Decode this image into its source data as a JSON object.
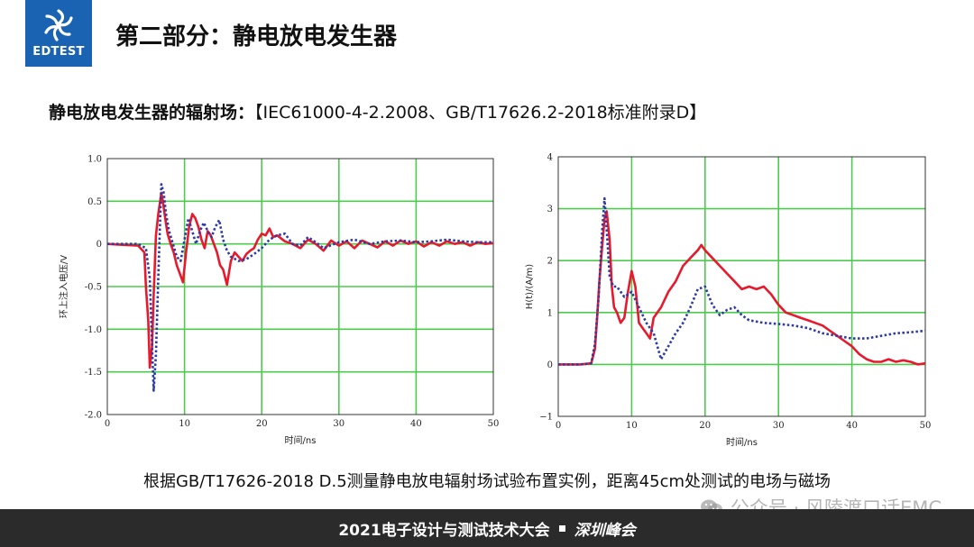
{
  "header": {
    "logo_text": "EDTEST",
    "title": "第二部分：静电放电发生器"
  },
  "subtitle": {
    "main": "静电放电发生器的辐射场：",
    "standard": "【IEC61000-4-2.2008、GB/T17626.2-2018标准附录D】"
  },
  "chart_data": [
    {
      "type": "line",
      "title": "",
      "xlabel": "时间/ns",
      "ylabel": "环上注入电压/V",
      "xlim": [
        0,
        50
      ],
      "ylim": [
        -2.0,
        1.0
      ],
      "xticks": [
        "0",
        "10",
        "20",
        "30",
        "40",
        "50"
      ],
      "yticks": [
        "1.0",
        "0.5",
        "0",
        "-0.5",
        "-1.0",
        "-1.5",
        "-2.0"
      ],
      "grid": true,
      "colors": [
        "#e8192c",
        "#2c3aa8"
      ],
      "series": [
        {
          "x": [
            0,
            4,
            4.8,
            5,
            5.3,
            5.5,
            5.8,
            6,
            6.3,
            6.6,
            7,
            7.2,
            7.5,
            7.8,
            8.2,
            8.6,
            9,
            9.4,
            9.8,
            10.2,
            10.6,
            11,
            11.4,
            11.8,
            12.2,
            12.6,
            13,
            13.4,
            13.8,
            14.2,
            14.6,
            15,
            15.5,
            16,
            16.5,
            17,
            17.5,
            18,
            18.5,
            19,
            19.5,
            20,
            20.5,
            21,
            21.5,
            22,
            23,
            24,
            25,
            26,
            27,
            28,
            29,
            30,
            31,
            32,
            33,
            34,
            35,
            36,
            37,
            38,
            39,
            40,
            41,
            42,
            43,
            44,
            45,
            46,
            47,
            48,
            49,
            50
          ],
          "y": [
            0,
            -0.02,
            -0.1,
            -0.5,
            -0.9,
            -1.45,
            -1.2,
            -0.6,
            0.1,
            0.35,
            0.6,
            0.5,
            0.3,
            0.12,
            0,
            -0.1,
            -0.25,
            -0.35,
            -0.45,
            -0.1,
            0.2,
            0.35,
            0.3,
            0.2,
            0.05,
            -0.05,
            0.15,
            0.1,
            0.0,
            -0.1,
            -0.25,
            -0.3,
            -0.48,
            -0.2,
            -0.1,
            -0.15,
            -0.2,
            -0.12,
            -0.08,
            -0.05,
            0.05,
            0.12,
            0.1,
            0.18,
            0.08,
            0.1,
            0.03,
            0.0,
            -0.05,
            0.05,
            0.0,
            -0.08,
            0.04,
            -0.02,
            0.03,
            -0.05,
            0.04,
            0.0,
            -0.04,
            0.03,
            -0.02,
            0.04,
            0.0,
            0.03,
            -0.03,
            0.02,
            -0.02,
            0.03,
            0.0,
            0.02,
            -0.02,
            0.02,
            0.0,
            0.01
          ]
        },
        {
          "x": [
            0,
            4,
            5,
            5.5,
            5.8,
            6,
            6.3,
            6.6,
            7,
            7.3,
            7.6,
            8,
            8.5,
            9,
            9.5,
            10,
            10.5,
            11,
            11.5,
            12,
            12.5,
            13,
            13.5,
            14,
            14.5,
            15,
            15.5,
            16,
            17,
            18,
            19,
            20,
            21,
            22,
            23,
            24,
            25,
            26,
            27,
            28,
            30,
            32,
            34,
            36,
            38,
            40,
            42,
            44,
            46,
            48,
            50
          ],
          "y": [
            0,
            0,
            -0.05,
            -0.4,
            -1.2,
            -1.72,
            -1.3,
            -0.4,
            0.7,
            0.6,
            0.35,
            0.15,
            0.0,
            -0.15,
            -0.2,
            0.05,
            0.3,
            0.15,
            0.0,
            0.15,
            0.25,
            0.15,
            0.08,
            0.2,
            0.28,
            0.05,
            -0.08,
            -0.15,
            -0.2,
            -0.18,
            -0.12,
            -0.05,
            0.05,
            0.1,
            0.12,
            0.0,
            -0.02,
            0.08,
            0.02,
            -0.05,
            0.02,
            0.05,
            0.0,
            0.03,
            0.04,
            0.02,
            0.03,
            0.05,
            0.03,
            0.02,
            0.02
          ]
        }
      ]
    },
    {
      "type": "line",
      "title": "",
      "xlabel": "时间/ns",
      "ylabel": "H(t)/(A/m)",
      "xlim": [
        0,
        50
      ],
      "ylim": [
        -1,
        4
      ],
      "xticks": [
        "0",
        "10",
        "20",
        "30",
        "40",
        "50"
      ],
      "yticks": [
        "4",
        "3",
        "2",
        "1",
        "0",
        "−1"
      ],
      "grid": true,
      "colors": [
        "#e8192c",
        "#2c3aa8"
      ],
      "series": [
        {
          "x": [
            0,
            3,
            4.5,
            5,
            5.3,
            5.6,
            6,
            6.3,
            6.6,
            7,
            7.3,
            7.6,
            8,
            8.5,
            9,
            9.5,
            10,
            10.5,
            11,
            11.5,
            12,
            12.5,
            13,
            13.5,
            14,
            15,
            16,
            17,
            18,
            19,
            19.5,
            20,
            21,
            22,
            23,
            24,
            25,
            26,
            27,
            28,
            29,
            30,
            31,
            32,
            33,
            34,
            35,
            36,
            37,
            38,
            39,
            40,
            41,
            42,
            43,
            44,
            45,
            46,
            47,
            48,
            49,
            50
          ],
          "y": [
            0,
            0,
            0.02,
            0.3,
            0.9,
            1.6,
            2.3,
            2.8,
            2.95,
            2.4,
            1.5,
            1.1,
            1.0,
            0.8,
            0.9,
            1.4,
            1.8,
            1.5,
            0.8,
            0.7,
            0.6,
            0.5,
            0.9,
            1.0,
            1.1,
            1.4,
            1.6,
            1.9,
            2.05,
            2.2,
            2.3,
            2.2,
            2.05,
            1.9,
            1.75,
            1.6,
            1.45,
            1.5,
            1.45,
            1.5,
            1.35,
            1.15,
            1.0,
            0.95,
            0.9,
            0.85,
            0.8,
            0.75,
            0.65,
            0.55,
            0.45,
            0.35,
            0.2,
            0.1,
            0.05,
            0.05,
            0.1,
            0.05,
            0.08,
            0.05,
            0.0,
            0.02
          ]
        },
        {
          "x": [
            0,
            3,
            4.5,
            5,
            5.5,
            6,
            6.3,
            6.6,
            7,
            7.5,
            8,
            9,
            10,
            11,
            12,
            13,
            14,
            15,
            16,
            17,
            18,
            19,
            20,
            21,
            22,
            23,
            24,
            25,
            26,
            28,
            30,
            32,
            34,
            36,
            38,
            40,
            42,
            44,
            46,
            48,
            50
          ],
          "y": [
            0,
            0,
            0.02,
            0.4,
            1.3,
            2.6,
            3.2,
            2.6,
            1.7,
            1.5,
            1.5,
            1.3,
            1.4,
            1.1,
            0.8,
            0.6,
            0.1,
            0.35,
            0.6,
            0.8,
            1.1,
            1.45,
            1.5,
            1.15,
            0.95,
            1.05,
            1.1,
            0.95,
            0.85,
            0.8,
            0.78,
            0.75,
            0.7,
            0.6,
            0.55,
            0.5,
            0.5,
            0.55,
            0.6,
            0.62,
            0.65
          ]
        }
      ]
    }
  ],
  "caption": "根据GB/T17626-2018 D.5测量静电放电辐射场试验布置实例，距离45cm处测试的电场与磁场",
  "watermark": "公众号 · 风陵渡口话EMC",
  "footer": {
    "left": "2021电子设计与测试技术大会",
    "right": "深圳峰会"
  }
}
